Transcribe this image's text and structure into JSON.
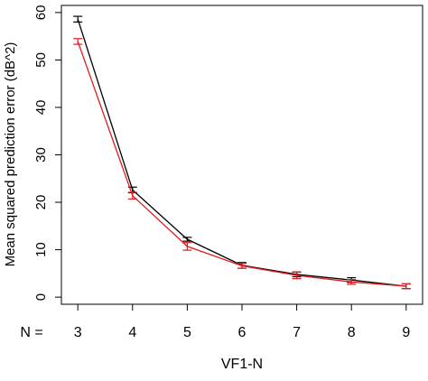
{
  "chart_data": {
    "type": "line",
    "xlabel": "VF1-N",
    "ylabel": "Mean squared prediction error (dB^2)",
    "n_prefix": "N =",
    "x": [
      3,
      4,
      5,
      6,
      7,
      8,
      9
    ],
    "x_tick_labels": [
      "3",
      "4",
      "5",
      "6",
      "7",
      "8",
      "9"
    ],
    "y_ticks": [
      0,
      10,
      20,
      30,
      40,
      50,
      60
    ],
    "y_tick_labels": [
      "0",
      "10",
      "20",
      "30",
      "40",
      "50",
      "60"
    ],
    "xlim": [
      2.7,
      9.3
    ],
    "ylim": [
      -1.5,
      61.5
    ],
    "grid": false,
    "series": [
      {
        "color": "#000000",
        "values": [
          58.6,
          22.6,
          12.2,
          6.7,
          4.8,
          3.6,
          2.3
        ],
        "err": [
          0.6,
          0.6,
          0.4,
          0.6,
          0.5,
          0.5,
          0.5
        ]
      },
      {
        "color": "#e31a1c",
        "values": [
          53.9,
          21.4,
          10.7,
          6.6,
          4.6,
          3.2,
          2.3
        ],
        "err": [
          0.6,
          0.7,
          0.8,
          0.5,
          0.7,
          0.5,
          0.5
        ]
      }
    ]
  }
}
